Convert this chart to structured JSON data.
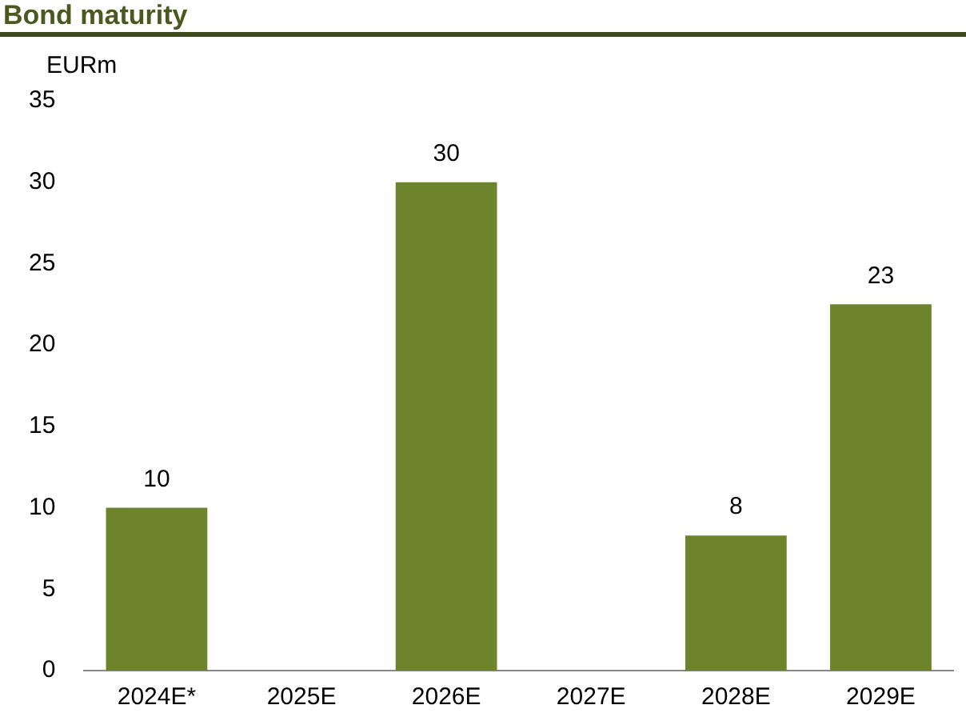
{
  "chart_data": {
    "type": "bar",
    "title": "Bond maturity",
    "ylabel": "EURm",
    "categories": [
      "2024E*",
      "2025E",
      "2026E",
      "2027E",
      "2028E",
      "2029E"
    ],
    "values": [
      10,
      null,
      30,
      null,
      8.3,
      22.5
    ],
    "value_labels": [
      "10",
      null,
      "30",
      null,
      "8",
      "23"
    ],
    "color": "#6e842c",
    "ylim": [
      0,
      35
    ],
    "yticks": [
      0,
      5,
      10,
      15,
      20,
      25,
      30,
      35
    ],
    "grid": false,
    "legend": false
  }
}
